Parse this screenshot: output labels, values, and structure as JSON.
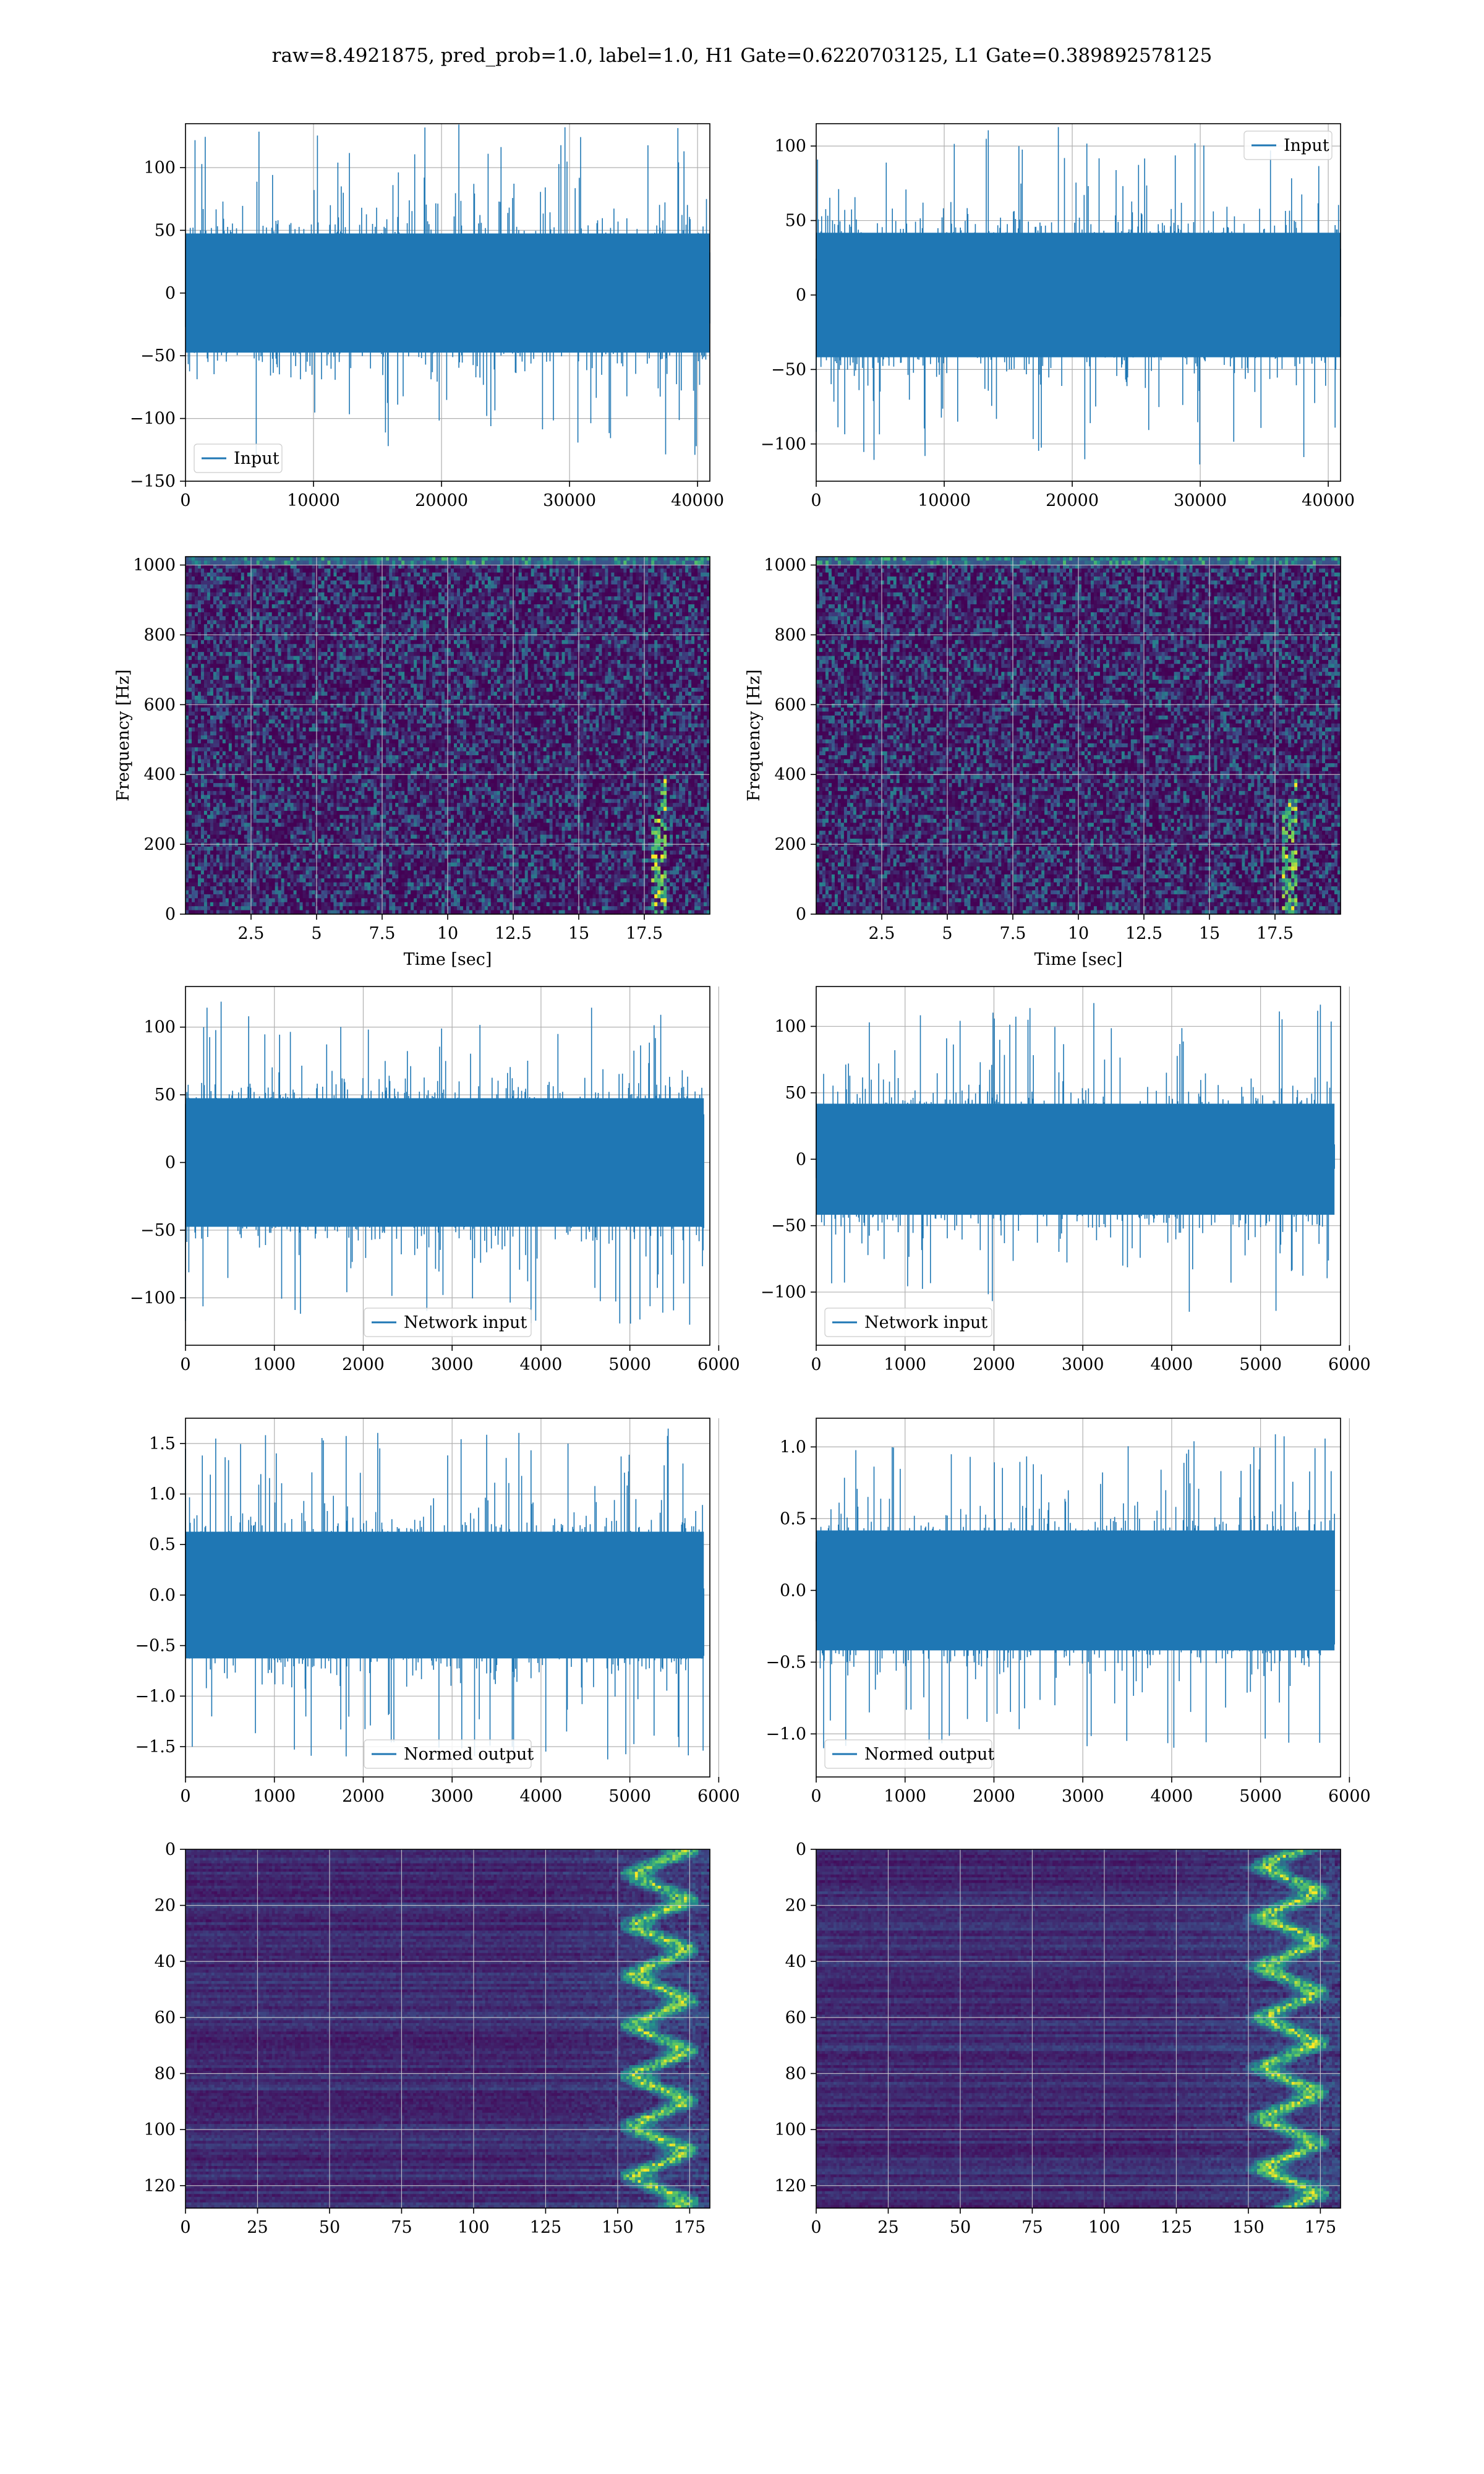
{
  "figure": {
    "suptitle": "raw=8.4921875, pred_prob=1.0, label=1.0, H1 Gate=0.6220703125, L1 Gate=0.389892578125"
  },
  "style": {
    "line_color": "#1f77b4",
    "grid_color": "#b0b0b0",
    "cmap": "viridis"
  },
  "chart_data": [
    {
      "type": "line",
      "row": 0,
      "col": 0,
      "legend": "Input",
      "legend_loc": "lower left",
      "xlim": [
        0,
        40960
      ],
      "ylim": [
        -150,
        135
      ],
      "xticks": [
        0,
        10000,
        20000,
        30000,
        40000
      ],
      "yticks": [
        -150,
        -100,
        -50,
        0,
        50,
        100
      ],
      "n": 40960,
      "sigma": 25,
      "peak": 135,
      "grid": true
    },
    {
      "type": "line",
      "row": 0,
      "col": 1,
      "legend": "Input",
      "legend_loc": "upper right",
      "xlim": [
        0,
        40960
      ],
      "ylim": [
        -125,
        115
      ],
      "xticks": [
        0,
        10000,
        20000,
        30000,
        40000
      ],
      "yticks": [
        -100,
        -50,
        0,
        50,
        100
      ],
      "n": 40960,
      "sigma": 22,
      "peak": 115,
      "grid": true
    },
    {
      "type": "heatmap",
      "row": 1,
      "col": 0,
      "xlabel": "Time [sec]",
      "ylabel": "Frequency [Hz]",
      "xlim": [
        0,
        20
      ],
      "ylim": [
        0,
        1024
      ],
      "xticks": [
        2.5,
        5.0,
        7.5,
        10.0,
        12.5,
        15.0,
        17.5
      ],
      "yticks": [
        0,
        200,
        400,
        600,
        800,
        1000
      ],
      "chirp_time": 18,
      "grid": true
    },
    {
      "type": "heatmap",
      "row": 1,
      "col": 1,
      "xlabel": "Time [sec]",
      "ylabel": "Frequency [Hz]",
      "xlim": [
        0,
        20
      ],
      "ylim": [
        0,
        1024
      ],
      "xticks": [
        2.5,
        5.0,
        7.5,
        10.0,
        12.5,
        15.0,
        17.5
      ],
      "yticks": [
        0,
        200,
        400,
        600,
        800,
        1000
      ],
      "chirp_time": 18,
      "grid": true
    },
    {
      "type": "line",
      "row": 2,
      "col": 0,
      "legend": "Network input",
      "legend_loc": "lower center",
      "xlim": [
        0,
        5900
      ],
      "ylim": [
        -135,
        130
      ],
      "xticks": [
        0,
        1000,
        2000,
        3000,
        4000,
        5000,
        6000
      ],
      "yticks": [
        -100,
        -50,
        0,
        50,
        100
      ],
      "n": 5832,
      "sigma": 25,
      "peak": 120,
      "grid": true
    },
    {
      "type": "line",
      "row": 2,
      "col": 1,
      "legend": "Network input",
      "legend_loc": "lower left",
      "xlim": [
        0,
        5900
      ],
      "ylim": [
        -140,
        130
      ],
      "xticks": [
        0,
        1000,
        2000,
        3000,
        4000,
        5000,
        6000
      ],
      "yticks": [
        -100,
        -50,
        0,
        50,
        100
      ],
      "n": 5832,
      "sigma": 22,
      "peak": 118,
      "grid": true
    },
    {
      "type": "line",
      "row": 3,
      "col": 0,
      "legend": "Normed output",
      "legend_loc": "lower center",
      "xlim": [
        0,
        5900
      ],
      "ylim": [
        -1.8,
        1.75
      ],
      "xticks": [
        0,
        1000,
        2000,
        3000,
        4000,
        5000,
        6000
      ],
      "yticks": [
        -1.5,
        -1.0,
        -0.5,
        0.0,
        0.5,
        1.0,
        1.5
      ],
      "n": 5832,
      "sigma": 0.33,
      "peak": 1.65,
      "grid": true
    },
    {
      "type": "line",
      "row": 3,
      "col": 1,
      "legend": "Normed output",
      "legend_loc": "lower left",
      "xlim": [
        0,
        5900
      ],
      "ylim": [
        -1.3,
        1.2
      ],
      "xticks": [
        0,
        1000,
        2000,
        3000,
        4000,
        5000,
        6000
      ],
      "yticks": [
        -1.0,
        -0.5,
        0.0,
        0.5,
        1.0
      ],
      "n": 5832,
      "sigma": 0.22,
      "peak": 1.1,
      "grid": true
    },
    {
      "type": "heatmap",
      "row": 4,
      "col": 0,
      "xlim": [
        0,
        182
      ],
      "ylim": [
        128,
        0
      ],
      "xticks": [
        0,
        25,
        50,
        75,
        100,
        125,
        150,
        175
      ],
      "yticks": [
        0,
        20,
        40,
        60,
        80,
        100,
        120
      ],
      "hot_band": [
        150,
        182
      ],
      "grid": true
    },
    {
      "type": "heatmap",
      "row": 4,
      "col": 1,
      "xlim": [
        0,
        182
      ],
      "ylim": [
        128,
        0
      ],
      "xticks": [
        0,
        25,
        50,
        75,
        100,
        125,
        150,
        175
      ],
      "yticks": [
        0,
        20,
        40,
        60,
        80,
        100,
        120
      ],
      "hot_band": [
        145,
        182
      ],
      "grid": true
    }
  ]
}
